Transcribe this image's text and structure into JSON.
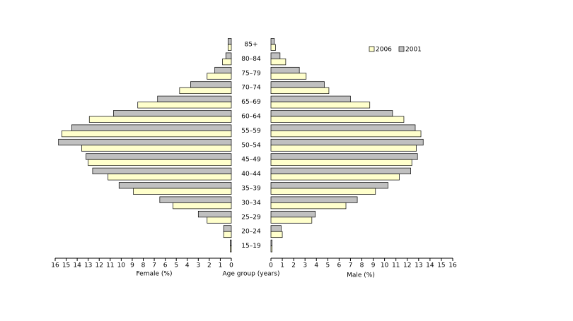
{
  "chart_data": {
    "type": "pyramid",
    "categories": [
      "15–19",
      "20–24",
      "25–29",
      "30–34",
      "35–39",
      "40–44",
      "45–49",
      "50–54",
      "55–59",
      "60–64",
      "65–69",
      "70–74",
      "75–79",
      "80–84",
      "85+"
    ],
    "series": [
      {
        "name": "2006",
        "color": "#ffffcc",
        "female": [
          0.1,
          0.7,
          2.2,
          5.3,
          8.9,
          11.2,
          13.0,
          13.6,
          15.4,
          12.9,
          8.5,
          4.7,
          2.2,
          0.8,
          0.3
        ],
        "male": [
          0.1,
          1.0,
          3.6,
          6.6,
          9.2,
          11.3,
          12.4,
          12.8,
          13.2,
          11.7,
          8.7,
          5.1,
          3.1,
          1.3,
          0.4
        ]
      },
      {
        "name": "2001",
        "color": "#c0c0c0",
        "female": [
          0.1,
          0.7,
          3.0,
          6.5,
          10.2,
          12.6,
          13.2,
          15.7,
          14.5,
          10.7,
          6.7,
          3.7,
          1.5,
          0.5,
          0.3
        ],
        "male": [
          0.1,
          0.9,
          3.9,
          7.6,
          10.3,
          12.3,
          12.9,
          13.4,
          12.7,
          10.7,
          7.0,
          4.7,
          2.5,
          0.8,
          0.3
        ]
      }
    ],
    "xlim": [
      0,
      16
    ],
    "xticks": [
      0,
      1,
      2,
      3,
      4,
      5,
      6,
      7,
      8,
      9,
      10,
      11,
      12,
      13,
      14,
      15,
      16
    ],
    "female_label": "Female (%)",
    "male_label": "Male (%)",
    "age_label": "Age group (years)"
  }
}
